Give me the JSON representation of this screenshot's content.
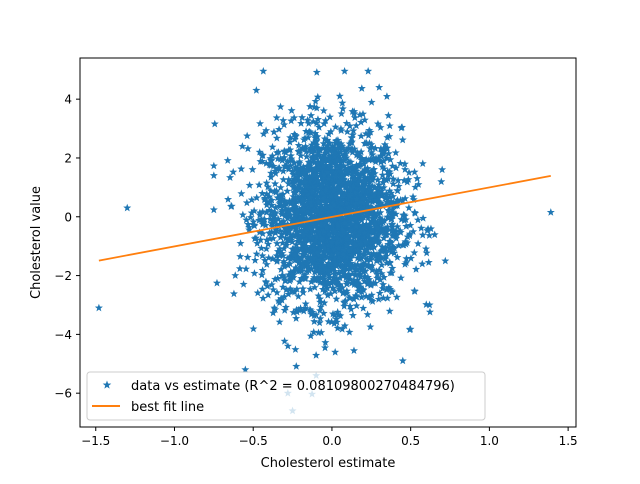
{
  "chart_data": {
    "type": "scatter",
    "title": "",
    "xlabel": "Cholesterol estimate",
    "ylabel": "Cholesterol value",
    "xlim": [
      -1.6,
      1.55
    ],
    "ylim": [
      -7.15,
      5.4
    ],
    "x_ticks": [
      {
        "value": -1.5,
        "label": "−1.5"
      },
      {
        "value": -1.0,
        "label": "−1.0"
      },
      {
        "value": -0.5,
        "label": "−0.5"
      },
      {
        "value": 0.0,
        "label": "0.0"
      },
      {
        "value": 0.5,
        "label": "0.5"
      },
      {
        "value": 1.0,
        "label": "1.0"
      },
      {
        "value": 1.5,
        "label": "1.5"
      }
    ],
    "y_ticks": [
      {
        "value": -6,
        "label": "−6"
      },
      {
        "value": -4,
        "label": "−4"
      },
      {
        "value": -2,
        "label": "−2"
      },
      {
        "value": 0,
        "label": "0"
      },
      {
        "value": 2,
        "label": "2"
      },
      {
        "value": 4,
        "label": "4"
      }
    ],
    "grid": false,
    "legend_position": "lower-left",
    "series": [
      {
        "name": "data vs estimate (R^2 = 0.08109800270484796)",
        "kind": "scatter",
        "marker": "star",
        "color": "#1f77b4",
        "cloud": {
          "x_center": 0.0,
          "x_spread": 0.22,
          "x_range": [
            -0.75,
            0.72
          ],
          "y_center": 0.0,
          "y_spread": 1.5,
          "y_range": [
            -6.6,
            4.95
          ]
        },
        "points": [
          {
            "x": -1.48,
            "y": -3.1
          },
          {
            "x": -1.3,
            "y": 0.3
          },
          {
            "x": 1.39,
            "y": 0.15
          },
          {
            "x": 0.23,
            "y": 4.95
          },
          {
            "x": -0.48,
            "y": 4.3
          },
          {
            "x": -0.28,
            "y": -6.0
          },
          {
            "x": -0.25,
            "y": -6.6
          },
          {
            "x": 0.3,
            "y": 4.4
          },
          {
            "x": -0.75,
            "y": 1.4
          },
          {
            "x": 0.7,
            "y": 1.6
          },
          {
            "x": 0.62,
            "y": -3.0
          },
          {
            "x": -0.55,
            "y": -5.2
          },
          {
            "x": 0.45,
            "y": -4.9
          },
          {
            "x": -0.1,
            "y": -5.4
          },
          {
            "x": 0.05,
            "y": 4.1
          }
        ]
      },
      {
        "name": "best fit line",
        "kind": "line",
        "color": "#ff7f0e",
        "x": [
          -1.48,
          1.39
        ],
        "y": [
          -1.49,
          1.39
        ]
      }
    ]
  }
}
